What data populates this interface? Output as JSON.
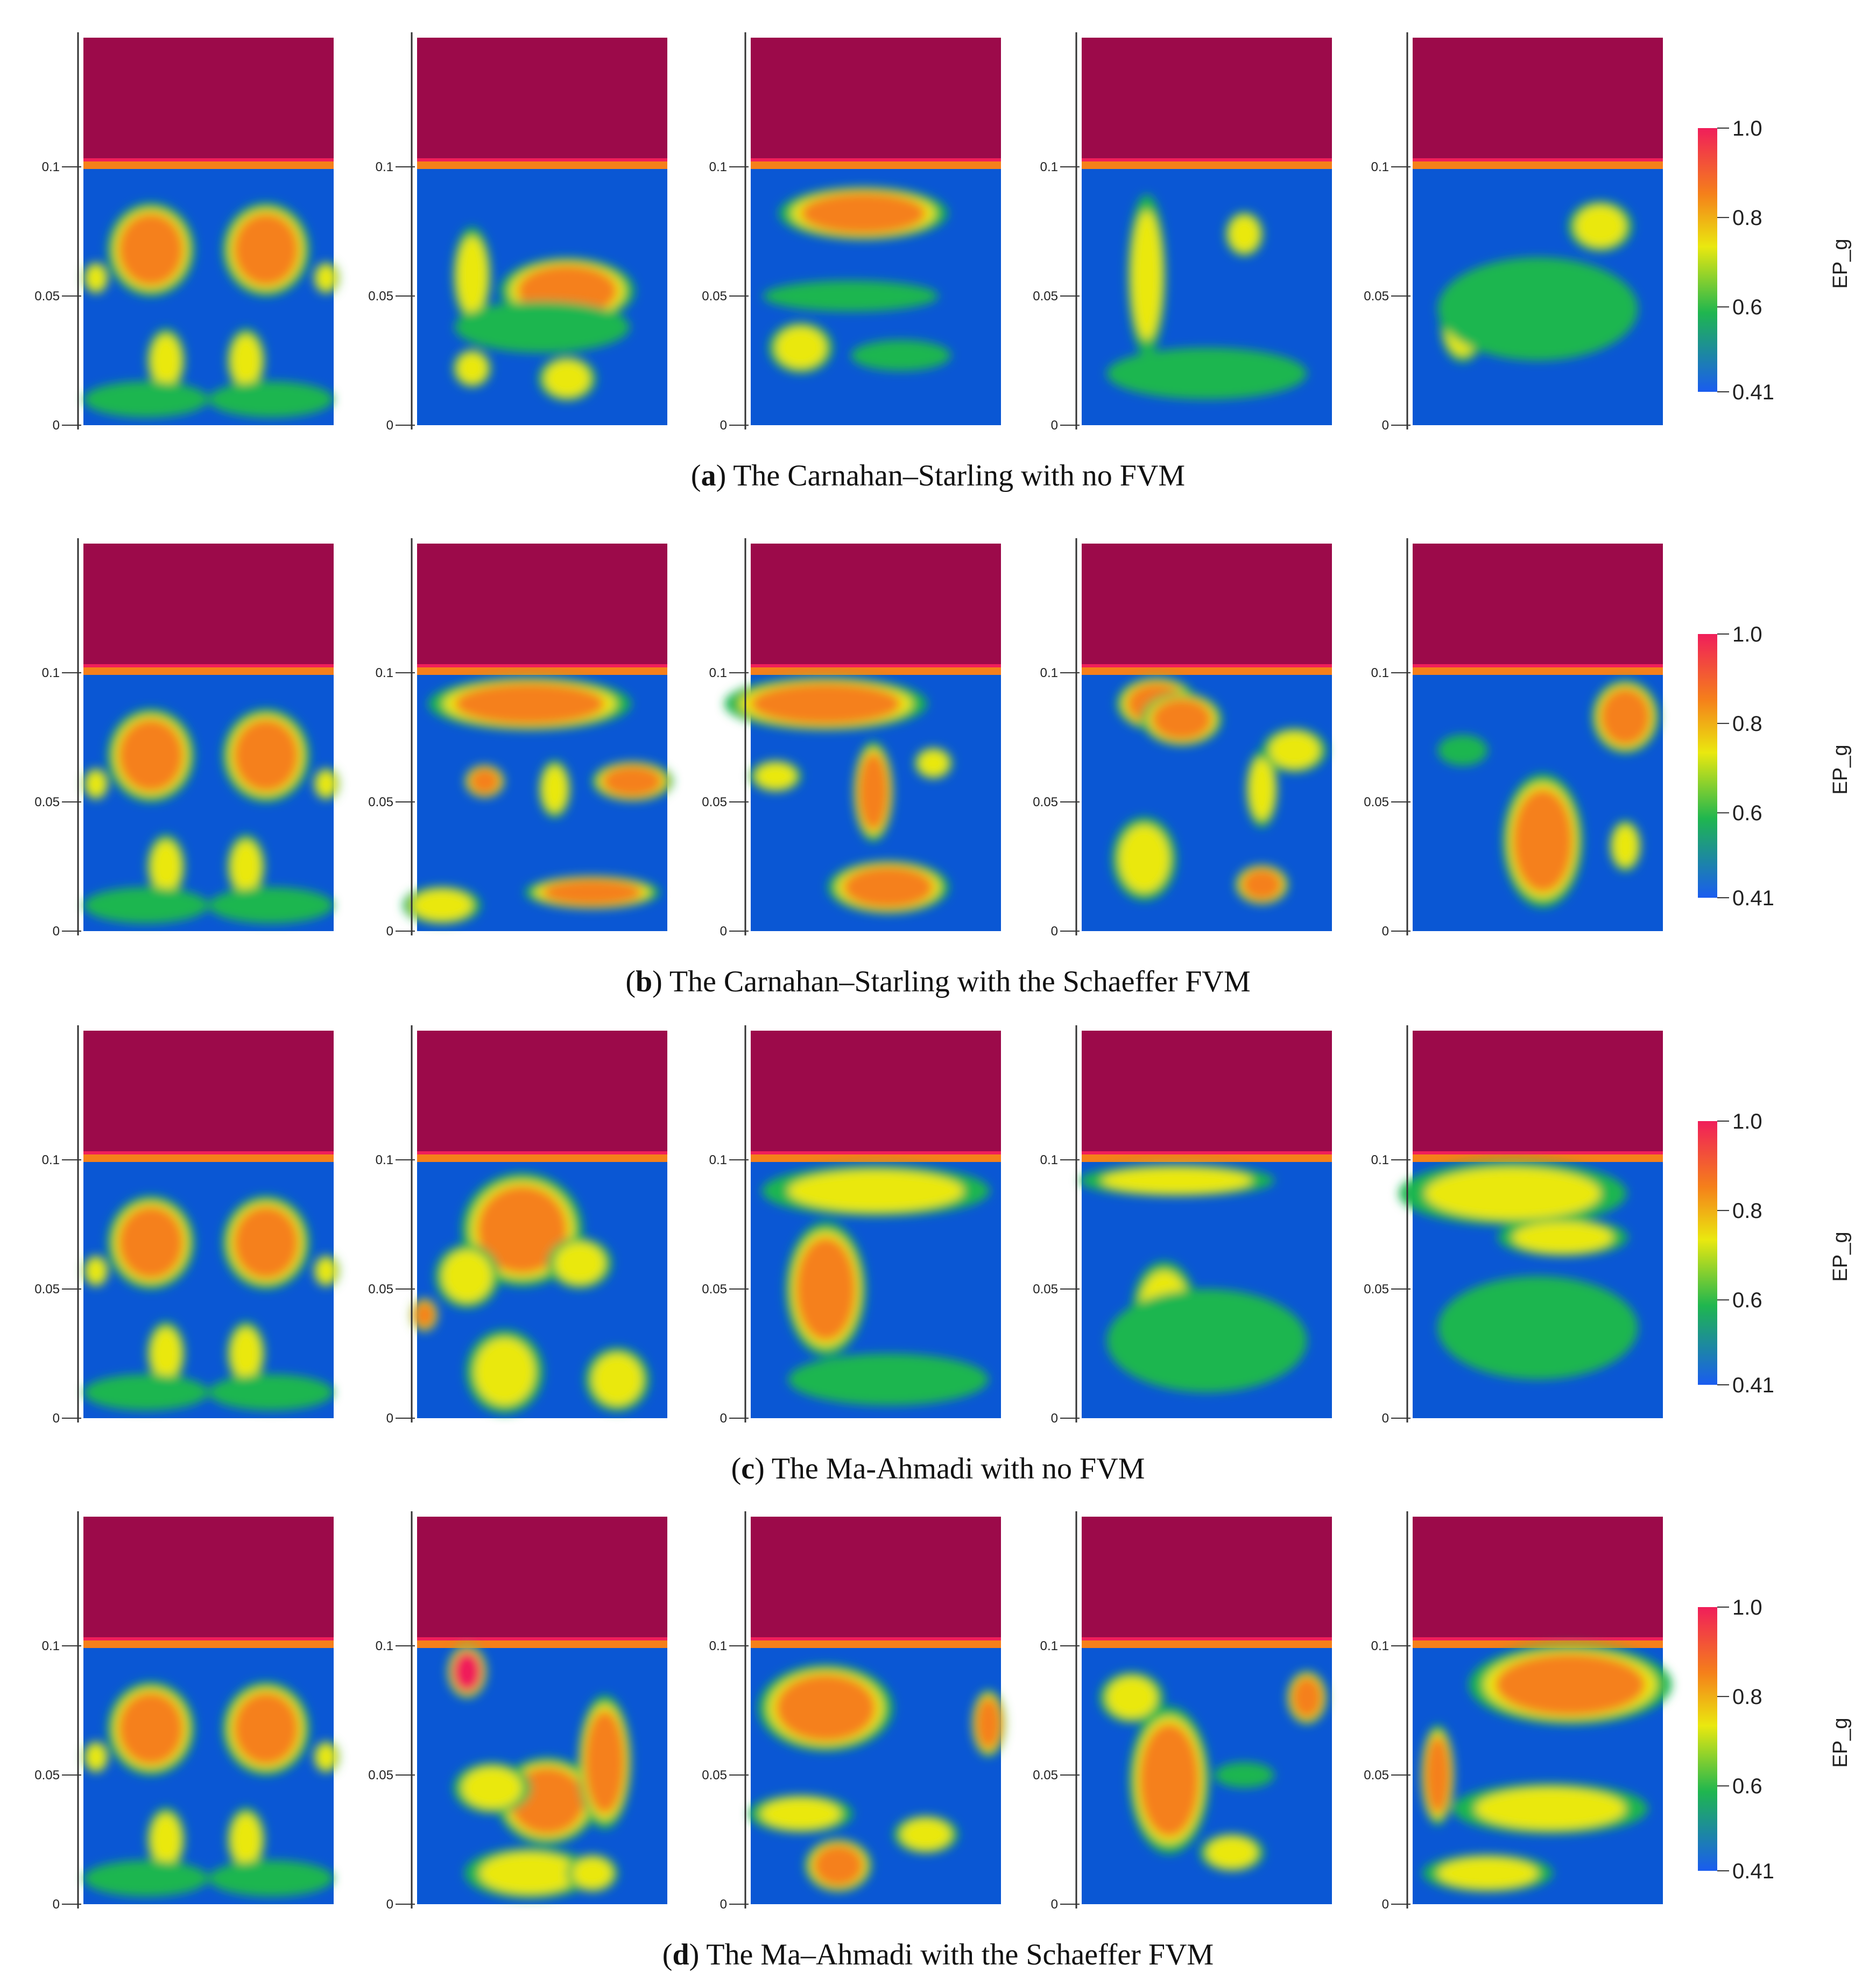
{
  "chart_data": {
    "type": "heatmap",
    "variable": "EP_g",
    "colorbar": {
      "title": "EP_g",
      "min": 0.41,
      "max": 1.0,
      "tick_labels": [
        "1.0",
        "0.8",
        "0.6",
        "0.41"
      ],
      "tick_values": [
        1.0,
        0.8,
        0.6,
        0.41
      ],
      "colors": [
        "#1a5cf0",
        "#1fb64f",
        "#eae80f",
        "#f5801a",
        "#f01e5a"
      ]
    },
    "y_axis": {
      "tick_values": [
        0,
        0.05,
        0.1
      ],
      "tick_labels": [
        "0",
        "0.05",
        "0.1"
      ],
      "range": [
        0,
        0.15
      ]
    },
    "bed_surface_height": 0.1,
    "colors": {
      "freeboard": "#9c0a4a",
      "dense_bed": "#0a57d4"
    },
    "rows": [
      {
        "letter": "a",
        "caption": "The Carnahan–Starling with no FVM",
        "panels": 5
      },
      {
        "letter": "b",
        "caption": "The Carnahan–Starling with the Schaeffer FVM",
        "panels": 5
      },
      {
        "letter": "c",
        "caption": "The Ma-Ahmadi with no FVM",
        "panels": 5
      },
      {
        "letter": "d",
        "caption": "The Ma–Ahmadi with the Schaeffer FVM",
        "panels": 5
      }
    ]
  }
}
